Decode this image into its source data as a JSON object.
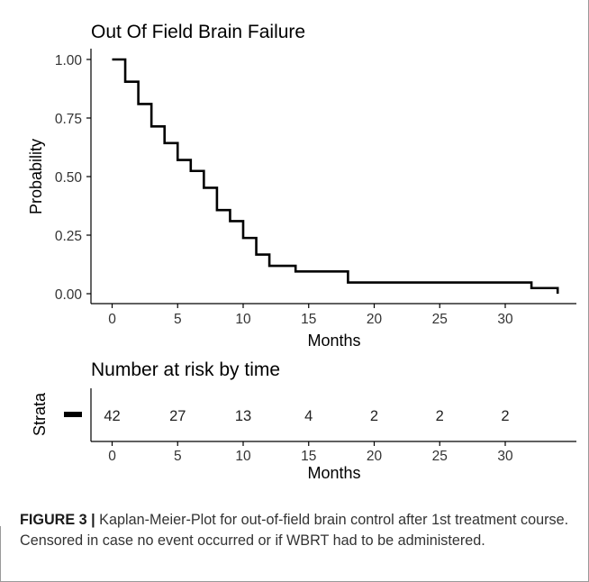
{
  "chart_data": [
    {
      "type": "line",
      "step": true,
      "title": "Out Of Field Brain Failure",
      "xlabel": "Months",
      "ylabel": "Probability",
      "xlim": [
        0,
        34
      ],
      "ylim": [
        0,
        1
      ],
      "xticks": [
        0,
        5,
        10,
        15,
        20,
        25,
        30
      ],
      "yticks": [
        0,
        0.25,
        0.5,
        0.75,
        1.0
      ],
      "ytick_labels": [
        "0.00",
        "0.25",
        "0.50",
        "0.75",
        "1.00"
      ],
      "grid": false,
      "series": [
        {
          "x": [
            0,
            1,
            2,
            3,
            4,
            5,
            6,
            7,
            8,
            9,
            10,
            11,
            12,
            14,
            18,
            32,
            34
          ],
          "y": [
            1.0,
            0.905,
            0.81,
            0.714,
            0.643,
            0.571,
            0.524,
            0.452,
            0.357,
            0.31,
            0.238,
            0.167,
            0.119,
            0.095,
            0.048,
            0.024,
            0.0
          ]
        }
      ]
    },
    {
      "type": "table",
      "title": "Number at risk by time",
      "ylabel": "Strata",
      "xlabel": "Months",
      "times": [
        0,
        5,
        10,
        15,
        20,
        25,
        30
      ],
      "counts": [
        "42",
        "27",
        "13",
        "4",
        "2",
        "2",
        "2"
      ]
    }
  ],
  "caption": {
    "label": "FIGURE 3 |",
    "text": " Kaplan-Meier-Plot for out-of-field brain control after 1st treatment course. Censored in case no event occurred or if WBRT had to be administered."
  }
}
